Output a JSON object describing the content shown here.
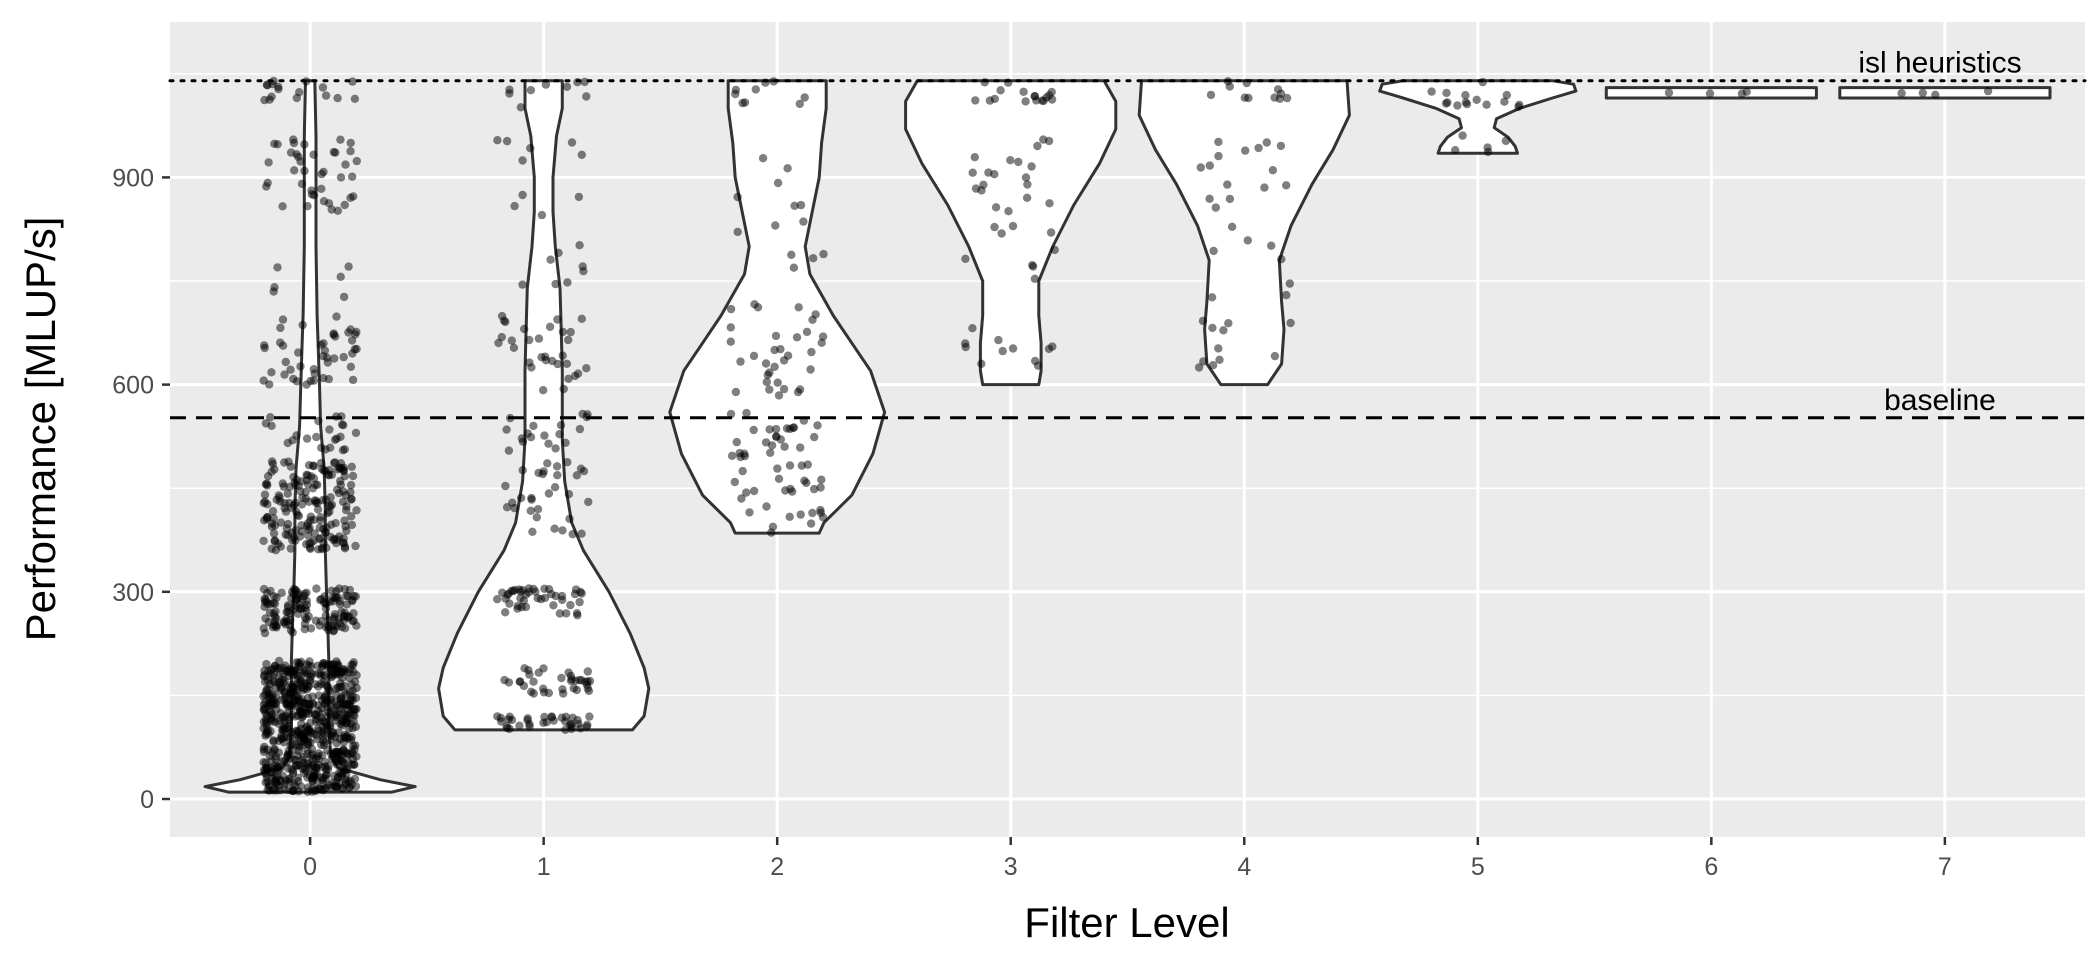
{
  "chart_data": {
    "type": "violin",
    "xlabel": "Filter Level",
    "ylabel": "Performance [MLUP/s]",
    "categories": [
      "0",
      "1",
      "2",
      "3",
      "4",
      "5",
      "6",
      "7"
    ],
    "y_ticks": [
      0,
      300,
      600,
      900
    ],
    "ylim": [
      -55,
      1125
    ],
    "xlim": [
      -0.6,
      7.6
    ],
    "grid": true,
    "panel_color": "#ebebeb",
    "reference_lines": [
      {
        "label": "isl heuristics",
        "value": 1040,
        "style": "dotted"
      },
      {
        "label": "baseline",
        "value": 552,
        "style": "dashed"
      }
    ],
    "violins": [
      {
        "level": 0,
        "min": 10,
        "max": 1040,
        "profile": [
          [
            10,
            0.35
          ],
          [
            18,
            0.45
          ],
          [
            28,
            0.3
          ],
          [
            45,
            0.12
          ],
          [
            60,
            0.09
          ],
          [
            100,
            0.08
          ],
          [
            150,
            0.08
          ],
          [
            200,
            0.08
          ],
          [
            260,
            0.075
          ],
          [
            300,
            0.07
          ],
          [
            360,
            0.065
          ],
          [
            420,
            0.065
          ],
          [
            480,
            0.06
          ],
          [
            540,
            0.045
          ],
          [
            600,
            0.04
          ],
          [
            650,
            0.035
          ],
          [
            700,
            0.03
          ],
          [
            800,
            0.025
          ],
          [
            900,
            0.025
          ],
          [
            960,
            0.025
          ],
          [
            1040,
            0.02
          ]
        ]
      },
      {
        "level": 1,
        "min": 100,
        "max": 1040,
        "profile": [
          [
            100,
            0.38
          ],
          [
            120,
            0.43
          ],
          [
            160,
            0.45
          ],
          [
            190,
            0.43
          ],
          [
            240,
            0.37
          ],
          [
            300,
            0.28
          ],
          [
            360,
            0.17
          ],
          [
            400,
            0.12
          ],
          [
            460,
            0.09
          ],
          [
            520,
            0.08
          ],
          [
            580,
            0.08
          ],
          [
            620,
            0.08
          ],
          [
            680,
            0.075
          ],
          [
            740,
            0.07
          ],
          [
            800,
            0.05
          ],
          [
            850,
            0.04
          ],
          [
            900,
            0.04
          ],
          [
            960,
            0.055
          ],
          [
            1000,
            0.08
          ],
          [
            1040,
            0.08
          ]
        ]
      },
      {
        "level": 2,
        "min": 385,
        "max": 1040,
        "profile": [
          [
            385,
            0.18
          ],
          [
            400,
            0.2
          ],
          [
            440,
            0.32
          ],
          [
            500,
            0.41
          ],
          [
            560,
            0.46
          ],
          [
            620,
            0.4
          ],
          [
            660,
            0.32
          ],
          [
            700,
            0.24
          ],
          [
            760,
            0.14
          ],
          [
            800,
            0.12
          ],
          [
            850,
            0.15
          ],
          [
            900,
            0.18
          ],
          [
            950,
            0.19
          ],
          [
            1000,
            0.21
          ],
          [
            1040,
            0.21
          ]
        ]
      },
      {
        "level": 3,
        "min": 600,
        "max": 1040,
        "profile": [
          [
            600,
            0.12
          ],
          [
            620,
            0.13
          ],
          [
            660,
            0.13
          ],
          [
            700,
            0.12
          ],
          [
            750,
            0.12
          ],
          [
            800,
            0.18
          ],
          [
            860,
            0.27
          ],
          [
            920,
            0.38
          ],
          [
            970,
            0.45
          ],
          [
            1010,
            0.45
          ],
          [
            1040,
            0.4
          ]
        ]
      },
      {
        "level": 4,
        "min": 600,
        "max": 1040,
        "profile": [
          [
            600,
            0.1
          ],
          [
            630,
            0.16
          ],
          [
            680,
            0.17
          ],
          [
            720,
            0.16
          ],
          [
            780,
            0.15
          ],
          [
            830,
            0.2
          ],
          [
            890,
            0.29
          ],
          [
            940,
            0.38
          ],
          [
            990,
            0.45
          ],
          [
            1040,
            0.44
          ]
        ]
      },
      {
        "level": 5,
        "min": 935,
        "max": 1040,
        "profile": [
          [
            935,
            0.17
          ],
          [
            945,
            0.16
          ],
          [
            958,
            0.13
          ],
          [
            972,
            0.07
          ],
          [
            985,
            0.08
          ],
          [
            1000,
            0.18
          ],
          [
            1015,
            0.32
          ],
          [
            1025,
            0.42
          ],
          [
            1035,
            0.41
          ],
          [
            1040,
            0.32
          ]
        ]
      },
      {
        "level": 6,
        "min": 1015,
        "max": 1030,
        "profile": [
          [
            1015,
            0.45
          ],
          [
            1030,
            0.45
          ]
        ]
      },
      {
        "level": 7,
        "min": 1015,
        "max": 1030,
        "profile": [
          [
            1015,
            0.45
          ],
          [
            1030,
            0.45
          ]
        ]
      }
    ],
    "point_clusters": [
      {
        "level": 0,
        "count": 1150,
        "ranges": [
          [
            10,
            200,
            0.6
          ],
          [
            240,
            305,
            0.12
          ],
          [
            360,
            490,
            0.16
          ],
          [
            500,
            555,
            0.02
          ],
          [
            600,
            700,
            0.04
          ],
          [
            720,
            780,
            0.005
          ],
          [
            850,
            960,
            0.035
          ],
          [
            1010,
            1040,
            0.015
          ]
        ]
      },
      {
        "level": 1,
        "count": 220,
        "ranges": [
          [
            100,
            120,
            0.16
          ],
          [
            150,
            190,
            0.16
          ],
          [
            265,
            305,
            0.2
          ],
          [
            380,
            490,
            0.14
          ],
          [
            500,
            560,
            0.08
          ],
          [
            590,
            700,
            0.14
          ],
          [
            740,
            960,
            0.08
          ],
          [
            1000,
            1040,
            0.04
          ]
        ]
      },
      {
        "level": 2,
        "count": 110,
        "ranges": [
          [
            385,
            500,
            0.3
          ],
          [
            500,
            560,
            0.2
          ],
          [
            580,
            720,
            0.3
          ],
          [
            750,
            960,
            0.12
          ],
          [
            1000,
            1040,
            0.08
          ]
        ]
      },
      {
        "level": 3,
        "count": 55,
        "ranges": [
          [
            600,
            700,
            0.2
          ],
          [
            700,
            860,
            0.2
          ],
          [
            860,
            960,
            0.3
          ],
          [
            1010,
            1040,
            0.3
          ]
        ]
      },
      {
        "level": 4,
        "count": 45,
        "ranges": [
          [
            620,
            700,
            0.25
          ],
          [
            700,
            860,
            0.2
          ],
          [
            860,
            960,
            0.3
          ],
          [
            1010,
            1040,
            0.25
          ]
        ]
      },
      {
        "level": 5,
        "count": 20,
        "ranges": [
          [
            935,
            965,
            0.25
          ],
          [
            1000,
            1040,
            0.75
          ]
        ]
      },
      {
        "level": 6,
        "count": 4,
        "ranges": [
          [
            1018,
            1028,
            1.0
          ]
        ]
      },
      {
        "level": 7,
        "count": 4,
        "ranges": [
          [
            1018,
            1028,
            1.0
          ]
        ]
      }
    ]
  }
}
